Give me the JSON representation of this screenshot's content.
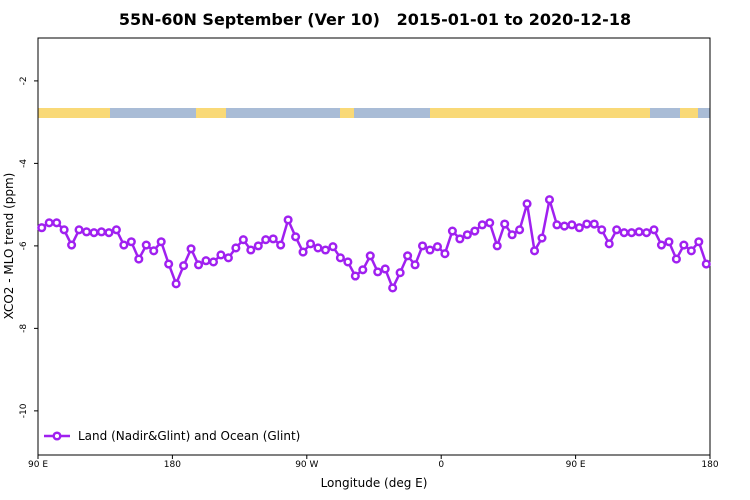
{
  "chart_data": {
    "type": "line",
    "title": "55N-60N September (Ver 10)   2015-01-01 to 2020-12-18",
    "x_label": "Longitude (deg E)",
    "y_label": "XCO2 - MLO trend (ppm)",
    "xlim": [
      90,
      540
    ],
    "ylim": [
      -11.07,
      -0.96
    ],
    "xticks": [
      {
        "value": 90,
        "label": "90 E"
      },
      180,
      {
        "value": 270,
        "label": "90 W"
      },
      {
        "value": 360,
        "label": "0"
      },
      {
        "value": 450,
        "label": "90 E"
      },
      {
        "value": 540,
        "label": "180"
      }
    ],
    "yticks": [
      -2,
      -4,
      -6,
      -8,
      -10
    ],
    "grid": false,
    "legend": "lower left",
    "x": [
      92.5,
      97.5,
      102.5,
      107.5,
      112.5,
      117.5,
      122.5,
      127.5,
      132.5,
      137.5,
      142.5,
      147.5,
      152.5,
      157.5,
      162.5,
      167.5,
      172.5,
      177.5,
      182.5,
      187.5,
      192.5,
      197.5,
      202.5,
      207.5,
      212.5,
      217.5,
      222.5,
      227.5,
      232.5,
      237.5,
      242.5,
      247.5,
      252.5,
      257.5,
      262.5,
      267.5,
      272.5,
      277.5,
      282.5,
      287.5,
      292.5,
      297.5,
      302.5,
      307.5,
      312.5,
      317.5,
      322.5,
      327.5,
      332.5,
      337.5,
      342.5,
      347.5,
      352.5,
      357.5,
      362.5,
      367.5,
      372.5,
      377.5,
      382.5,
      387.5,
      392.5,
      397.5,
      402.5,
      407.5,
      412.5,
      417.5,
      422.5,
      427.5,
      432.5,
      437.5,
      442.5,
      447.5,
      452.5,
      457.5,
      462.5,
      467.5,
      472.5,
      477.5,
      482.5,
      487.5,
      492.5,
      497.5,
      502.5,
      507.5,
      512.5,
      517.5,
      522.5,
      527.5,
      532.5,
      537.5
    ],
    "series": [
      {
        "name": "Land (Nadir&Glint) and Ocean (Glint)",
        "color": "#a020f0",
        "values": [
          -5.56,
          -5.44,
          -5.44,
          -5.61,
          -5.98,
          -5.61,
          -5.66,
          -5.68,
          -5.66,
          -5.68,
          -5.61,
          -5.98,
          -5.9,
          -6.32,
          -5.98,
          -6.12,
          -5.9,
          -6.44,
          -6.92,
          -6.48,
          -6.07,
          -6.46,
          -6.36,
          -6.39,
          -6.22,
          -6.29,
          -6.05,
          -5.85,
          -6.1,
          -6.0,
          -5.85,
          -5.83,
          -5.98,
          -5.37,
          -5.78,
          -6.15,
          -5.95,
          -6.05,
          -6.1,
          -6.02,
          -6.29,
          -6.39,
          -6.73,
          -6.58,
          -6.24,
          -6.63,
          -6.56,
          -7.02,
          -6.65,
          -6.24,
          -6.46,
          -6.0,
          -6.1,
          -6.02,
          -6.19,
          -5.64,
          -5.83,
          -5.73,
          -5.64,
          -5.49,
          -5.44,
          -6.0,
          -5.47,
          -5.73,
          -5.61,
          -4.98,
          -6.12,
          -5.81,
          -4.88,
          -5.49,
          -5.52,
          -5.49,
          -5.56,
          -5.47,
          -5.47,
          -5.61,
          -5.95,
          -5.61,
          -5.68,
          -5.68,
          -5.66,
          -5.68,
          -5.61,
          -5.98,
          -5.9,
          -6.32,
          -5.98,
          -6.12,
          -5.9,
          -6.44
        ]
      }
    ]
  }
}
